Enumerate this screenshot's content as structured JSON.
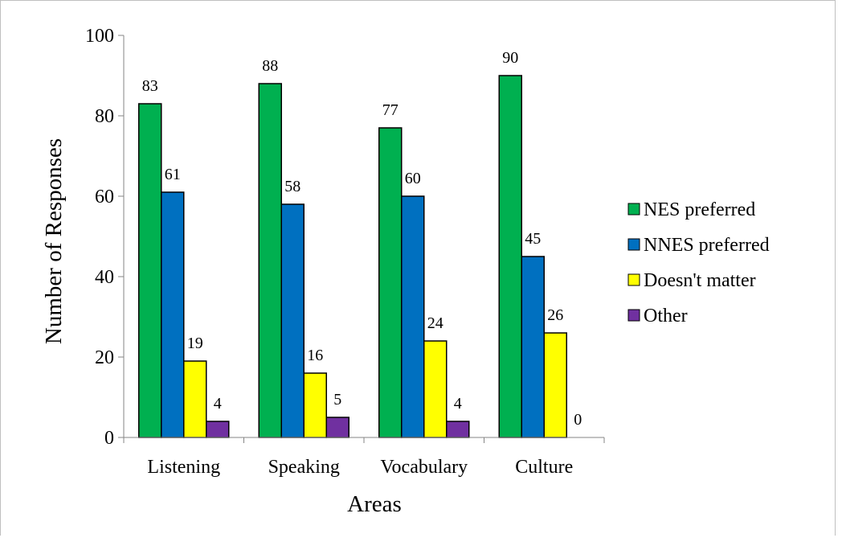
{
  "chart_data": {
    "type": "bar",
    "categories": [
      "Listening",
      "Speaking",
      "Vocabulary",
      "Culture"
    ],
    "series": [
      {
        "name": "NES preferred",
        "color": "#00b050",
        "values": [
          83,
          88,
          77,
          90
        ]
      },
      {
        "name": "NNES preferred",
        "color": "#0070c0",
        "values": [
          61,
          58,
          60,
          45
        ]
      },
      {
        "name": "Doesn't matter",
        "color": "#ffff00",
        "values": [
          19,
          16,
          24,
          26
        ]
      },
      {
        "name": "Other",
        "color": "#7030a0",
        "values": [
          4,
          5,
          4,
          0
        ]
      }
    ],
    "xlabel": "Areas",
    "ylabel": "Number of Responses",
    "ylim": [
      0,
      100
    ],
    "yticks": [
      0,
      20,
      40,
      60,
      80,
      100
    ],
    "legend_position": "right",
    "grid": false,
    "data_labels": true
  }
}
